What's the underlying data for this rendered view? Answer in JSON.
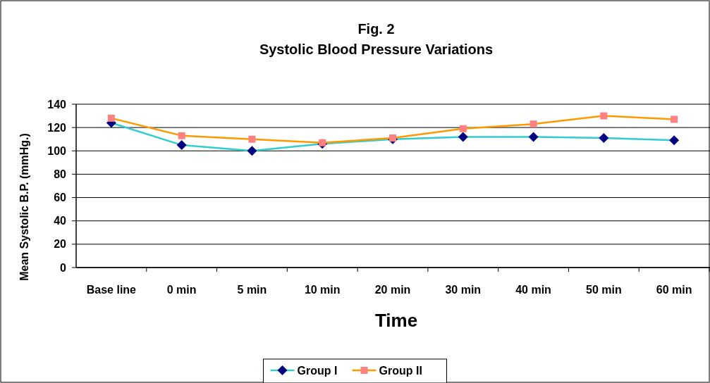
{
  "chart_data": {
    "type": "line",
    "title": "Fig. 2",
    "subtitle": "Systolic Blood Pressure Variations",
    "xlabel": "Time",
    "ylabel": "Mean Systolic B.P. (mmHg.)",
    "categories": [
      "Base line",
      "0 min",
      "5 min",
      "10 min",
      "20 min",
      "30 min",
      "40 min",
      "50 min",
      "60 min"
    ],
    "series": [
      {
        "name": "Group I",
        "color": "#33cccc",
        "marker": "diamond",
        "colors": [
          "#000080",
          "#000080",
          "#000080",
          "#000080",
          "#000080",
          "#000080",
          "#000080",
          "#000080",
          "#000080"
        ],
        "values": [
          124,
          105,
          100,
          106,
          110,
          112,
          112,
          111,
          109
        ]
      },
      {
        "name": "Group II",
        "color": "#ff9900",
        "marker": "square",
        "colors": [
          "#ff8080",
          "#ff8080",
          "#ff8080",
          "#ff8080",
          "#ff8080",
          "#ff8080",
          "#ff8080",
          "#ff8080",
          "#ff8080"
        ],
        "values": [
          128,
          113,
          110,
          107,
          111,
          119,
          123,
          130,
          127
        ]
      }
    ],
    "ylim": [
      0,
      140
    ],
    "yticks": [
      0,
      20,
      40,
      60,
      80,
      100,
      120,
      140
    ],
    "grid": "y",
    "legend": "bottom"
  }
}
